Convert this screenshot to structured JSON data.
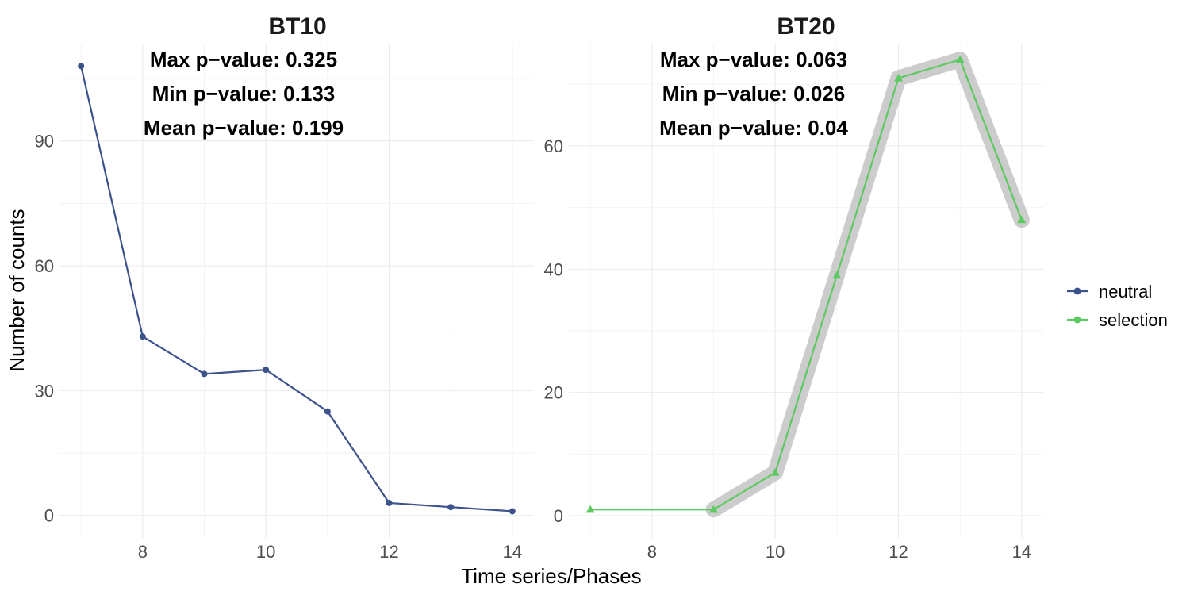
{
  "chart_data": {
    "type": "line",
    "xlabel": "Time series/Phases",
    "ylabel": "Number of counts",
    "legend": {
      "position": "right",
      "entries": [
        {
          "name": "neutral",
          "color": "#3b528b"
        },
        {
          "name": "selection",
          "color": "#5ec962"
        }
      ]
    },
    "panels": [
      {
        "title": "BT10",
        "annotations": [
          "Max p−value:  0.325",
          "Min p−value:  0.133",
          "Mean p−value:  0.199"
        ],
        "xlim": [
          6.65,
          14.35
        ],
        "ylim": [
          -5.4,
          113.4
        ],
        "x_ticks": [
          8,
          10,
          12,
          14
        ],
        "y_ticks": [
          0,
          30,
          60,
          90
        ],
        "grid": true,
        "series": [
          {
            "name": "neutral",
            "color": "#3b528b",
            "marker": "circle",
            "x": [
              7,
              8,
              9,
              10,
              11,
              12,
              13,
              14
            ],
            "y": [
              108,
              43,
              34,
              35,
              25,
              3,
              2,
              1
            ]
          }
        ]
      },
      {
        "title": "BT20",
        "annotations": [
          "Max p−value:  0.063",
          "Min p−value:  0.026",
          "Mean p−value:  0.04"
        ],
        "xlim": [
          6.65,
          14.35
        ],
        "ylim": [
          -3.6,
          76.6
        ],
        "x_ticks": [
          8,
          10,
          12,
          14
        ],
        "y_ticks": [
          0,
          20,
          40,
          60
        ],
        "grid": true,
        "highlight": {
          "color": "#cccccc",
          "x": [
            9,
            10,
            11,
            12,
            13,
            14
          ],
          "y": [
            1,
            7,
            39,
            71,
            74,
            48
          ]
        },
        "series": [
          {
            "name": "selection",
            "color": "#5ec962",
            "marker": "triangle",
            "x": [
              7,
              9,
              10,
              11,
              12,
              13,
              14
            ],
            "y": [
              1,
              1,
              7,
              39,
              71,
              74,
              48
            ]
          }
        ]
      }
    ]
  }
}
